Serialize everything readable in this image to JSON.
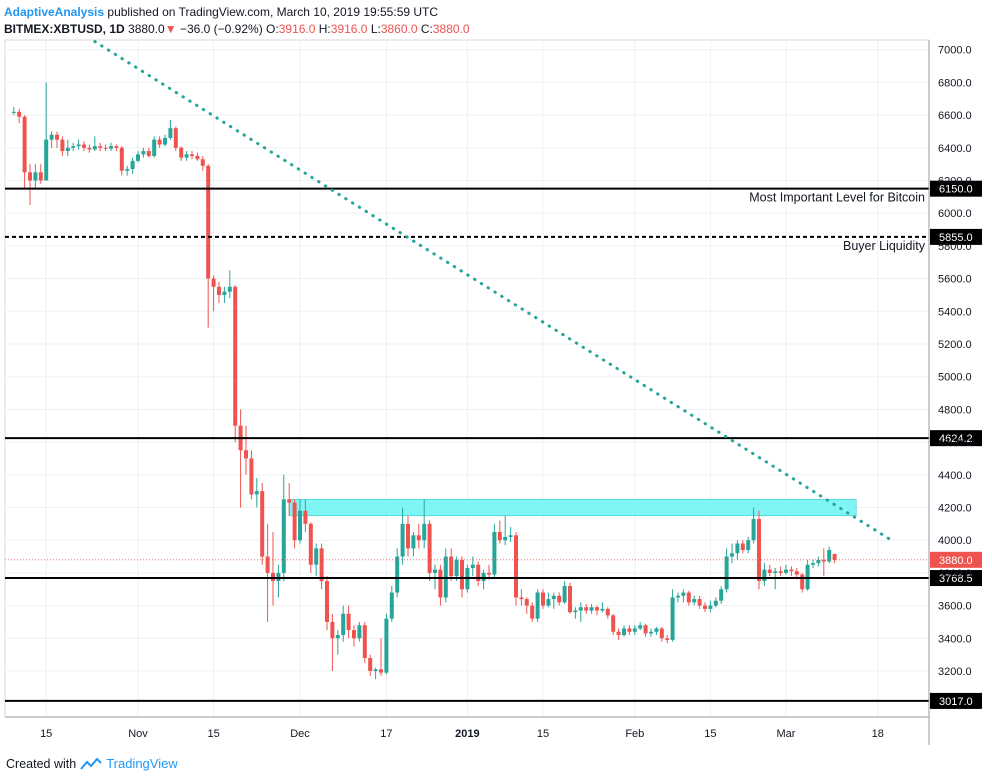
{
  "header": {
    "author": "AdaptiveAnalysis",
    "published": "published on TradingView.com, March 10, 2019 19:55:59 UTC",
    "symbol": "BITMEX:XBTUSD, 1D",
    "last": "3880.0",
    "change": "−36.0 (−0.92%)",
    "o_label": "O:",
    "o": "3916.0",
    "h_label": "H:",
    "h": "3916.0",
    "l_label": "L:",
    "l": "3860.0",
    "c_label": "C:",
    "c": "3880.0"
  },
  "footer": {
    "created_with": "Created with",
    "brand": "TradingView"
  },
  "colors": {
    "up": "#26a69a",
    "down": "#ef5350",
    "trendline": "#26a69a",
    "zone": "#80f5f5",
    "level": "#000000"
  },
  "chart_data": {
    "type": "candlestick",
    "y_ticks": [
      3200,
      3400,
      3600,
      3800,
      4000,
      4200,
      4400,
      4600,
      4800,
      5000,
      5200,
      5400,
      5600,
      5800,
      6000,
      6200,
      6400,
      6600,
      6800,
      7000
    ],
    "y_tick_labels": [
      "3200.0",
      "3400.0",
      "3600.0",
      "3800.0",
      "4000.0",
      "4200.0",
      "4400.0",
      "4600.0",
      "4800.0",
      "5000.0",
      "5200.0",
      "5400.0",
      "5600.0",
      "5800.0",
      "6000.0",
      "6200.0",
      "6400.0",
      "6600.0",
      "6800.0",
      "7000.0"
    ],
    "ylim": [
      2900,
      7070
    ],
    "x_ticks": [
      {
        "date": "2018-10-15",
        "label": "15"
      },
      {
        "date": "2018-11-01",
        "label": "Nov"
      },
      {
        "date": "2018-11-15",
        "label": "15"
      },
      {
        "date": "2018-12-01",
        "label": "Dec"
      },
      {
        "date": "2018-12-17",
        "label": "17"
      },
      {
        "date": "2019-01-01",
        "label": "2019"
      },
      {
        "date": "2019-01-15",
        "label": "15"
      },
      {
        "date": "2019-02-01",
        "label": "Feb"
      },
      {
        "date": "2019-02-15",
        "label": "15"
      },
      {
        "date": "2019-03-01",
        "label": "Mar"
      },
      {
        "date": "2019-03-18",
        "label": "18"
      }
    ],
    "levels": [
      {
        "value": 6150.0,
        "label": "6150.0",
        "style": "solid",
        "annotation": "Most Important Level for Bitcoin"
      },
      {
        "value": 5855.0,
        "label": "5855.0",
        "style": "dashed",
        "annotation": "Buyer Liquidity"
      },
      {
        "value": 4624.2,
        "label": "4624.2",
        "style": "solid",
        "annotation": ""
      },
      {
        "value": 3768.5,
        "label": "3768.5",
        "style": "solid",
        "annotation": ""
      },
      {
        "value": 3017.0,
        "label": "3017.0",
        "style": "solid",
        "annotation": ""
      }
    ],
    "last_price": {
      "value": 3880.0,
      "label": "3880.0"
    },
    "zone": {
      "start": "2018-11-29",
      "end": "2019-03-14",
      "low": 4150,
      "high": 4250
    },
    "trendline": {
      "start": {
        "date": "2018-10-24",
        "value": 7050
      },
      "end": {
        "date": "2019-03-21",
        "value": 3990
      }
    },
    "candles": [
      [
        "2018-10-09",
        6620,
        6650,
        6600,
        6620
      ],
      [
        "2018-10-10",
        6620,
        6640,
        6550,
        6590
      ],
      [
        "2018-10-11",
        6590,
        6600,
        6150,
        6250
      ],
      [
        "2018-10-12",
        6250,
        6300,
        6050,
        6200
      ],
      [
        "2018-10-13",
        6200,
        6300,
        6150,
        6250
      ],
      [
        "2018-10-14",
        6250,
        6300,
        6180,
        6200
      ],
      [
        "2018-10-15",
        6200,
        6800,
        6200,
        6450
      ],
      [
        "2018-10-16",
        6450,
        6500,
        6400,
        6480
      ],
      [
        "2018-10-17",
        6480,
        6500,
        6400,
        6450
      ],
      [
        "2018-10-18",
        6450,
        6470,
        6350,
        6380
      ],
      [
        "2018-10-19",
        6380,
        6450,
        6350,
        6400
      ],
      [
        "2018-10-20",
        6400,
        6430,
        6380,
        6410
      ],
      [
        "2018-10-21",
        6410,
        6450,
        6390,
        6420
      ],
      [
        "2018-10-22",
        6420,
        6440,
        6380,
        6400
      ],
      [
        "2018-10-23",
        6400,
        6420,
        6370,
        6390
      ],
      [
        "2018-10-24",
        6390,
        6470,
        6380,
        6410
      ],
      [
        "2018-10-25",
        6410,
        6430,
        6380,
        6400
      ],
      [
        "2018-10-26",
        6400,
        6420,
        6380,
        6395
      ],
      [
        "2018-10-27",
        6395,
        6430,
        6380,
        6410
      ],
      [
        "2018-10-28",
        6410,
        6420,
        6380,
        6400
      ],
      [
        "2018-10-29",
        6400,
        6410,
        6230,
        6260
      ],
      [
        "2018-10-30",
        6260,
        6290,
        6230,
        6270
      ],
      [
        "2018-10-31",
        6270,
        6340,
        6240,
        6320
      ],
      [
        "2018-11-01",
        6320,
        6380,
        6310,
        6360
      ],
      [
        "2018-11-02",
        6360,
        6400,
        6340,
        6380
      ],
      [
        "2018-11-03",
        6380,
        6400,
        6340,
        6350
      ],
      [
        "2018-11-04",
        6350,
        6470,
        6340,
        6450
      ],
      [
        "2018-11-05",
        6450,
        6470,
        6400,
        6420
      ],
      [
        "2018-11-06",
        6420,
        6480,
        6410,
        6460
      ],
      [
        "2018-11-07",
        6460,
        6570,
        6450,
        6520
      ],
      [
        "2018-11-08",
        6520,
        6530,
        6380,
        6400
      ],
      [
        "2018-11-09",
        6400,
        6410,
        6320,
        6340
      ],
      [
        "2018-11-10",
        6340,
        6380,
        6320,
        6360
      ],
      [
        "2018-11-11",
        6360,
        6380,
        6330,
        6350
      ],
      [
        "2018-11-12",
        6350,
        6370,
        6320,
        6330
      ],
      [
        "2018-11-13",
        6330,
        6350,
        6260,
        6290
      ],
      [
        "2018-11-14",
        6290,
        6300,
        5300,
        5600
      ],
      [
        "2018-11-15",
        5600,
        5620,
        5400,
        5550
      ],
      [
        "2018-11-16",
        5550,
        5580,
        5450,
        5500
      ],
      [
        "2018-11-17",
        5500,
        5550,
        5450,
        5520
      ],
      [
        "2018-11-18",
        5520,
        5650,
        5480,
        5550
      ],
      [
        "2018-11-19",
        5550,
        5560,
        4600,
        4700
      ],
      [
        "2018-11-20",
        4700,
        4800,
        4200,
        4550
      ],
      [
        "2018-11-21",
        4550,
        4700,
        4400,
        4500
      ],
      [
        "2018-11-22",
        4500,
        4550,
        4250,
        4280
      ],
      [
        "2018-11-23",
        4280,
        4380,
        4200,
        4300
      ],
      [
        "2018-11-24",
        4300,
        4350,
        3850,
        3900
      ],
      [
        "2018-11-25",
        3900,
        4100,
        3500,
        3800
      ],
      [
        "2018-11-26",
        3800,
        4050,
        3600,
        3750
      ],
      [
        "2018-11-27",
        3750,
        3850,
        3650,
        3800
      ],
      [
        "2018-11-28",
        3800,
        4400,
        3750,
        4250
      ],
      [
        "2018-11-29",
        4250,
        4350,
        4150,
        4230
      ],
      [
        "2018-11-30",
        4230,
        4250,
        3950,
        4000
      ],
      [
        "2018-12-01",
        4000,
        4250,
        3980,
        4180
      ],
      [
        "2018-12-02",
        4180,
        4250,
        4050,
        4100
      ],
      [
        "2018-12-03",
        4100,
        4110,
        3800,
        3850
      ],
      [
        "2018-12-04",
        3850,
        3980,
        3780,
        3950
      ],
      [
        "2018-12-05",
        3950,
        3980,
        3700,
        3750
      ],
      [
        "2018-12-06",
        3750,
        3780,
        3450,
        3500
      ],
      [
        "2018-12-07",
        3500,
        3550,
        3200,
        3400
      ],
      [
        "2018-12-08",
        3400,
        3450,
        3300,
        3420
      ],
      [
        "2018-12-09",
        3420,
        3600,
        3380,
        3550
      ],
      [
        "2018-12-10",
        3550,
        3600,
        3400,
        3450
      ],
      [
        "2018-12-11",
        3450,
        3480,
        3350,
        3400
      ],
      [
        "2018-12-12",
        3400,
        3500,
        3380,
        3480
      ],
      [
        "2018-12-13",
        3480,
        3500,
        3250,
        3280
      ],
      [
        "2018-12-14",
        3280,
        3300,
        3170,
        3200
      ],
      [
        "2018-12-15",
        3200,
        3220,
        3150,
        3210
      ],
      [
        "2018-12-16",
        3210,
        3400,
        3170,
        3190
      ],
      [
        "2018-12-17",
        3190,
        3550,
        3180,
        3520
      ],
      [
        "2018-12-18",
        3520,
        3720,
        3500,
        3680
      ],
      [
        "2018-12-19",
        3680,
        3950,
        3650,
        3900
      ],
      [
        "2018-12-20",
        3900,
        4200,
        3850,
        4100
      ],
      [
        "2018-12-21",
        4100,
        4150,
        3900,
        3950
      ],
      [
        "2018-12-22",
        3950,
        4050,
        3900,
        4030
      ],
      [
        "2018-12-23",
        4030,
        4100,
        3950,
        4000
      ],
      [
        "2018-12-24",
        4000,
        4250,
        3950,
        4100
      ],
      [
        "2018-12-25",
        4100,
        4120,
        3750,
        3800
      ],
      [
        "2018-12-26",
        3800,
        3850,
        3700,
        3820
      ],
      [
        "2018-12-27",
        3820,
        3850,
        3600,
        3650
      ],
      [
        "2018-12-28",
        3650,
        3950,
        3620,
        3900
      ],
      [
        "2018-12-29",
        3900,
        3950,
        3750,
        3780
      ],
      [
        "2018-12-30",
        3780,
        3900,
        3750,
        3880
      ],
      [
        "2018-12-31",
        3880,
        3900,
        3650,
        3700
      ],
      [
        "2019-01-01",
        3700,
        3850,
        3680,
        3830
      ],
      [
        "2019-01-02",
        3830,
        3900,
        3780,
        3850
      ],
      [
        "2019-01-03",
        3850,
        3870,
        3720,
        3750
      ],
      [
        "2019-01-04",
        3750,
        3820,
        3700,
        3800
      ],
      [
        "2019-01-05",
        3800,
        3850,
        3760,
        3790
      ],
      [
        "2019-01-06",
        3790,
        4100,
        3770,
        4050
      ],
      [
        "2019-01-07",
        4050,
        4120,
        3980,
        4000
      ],
      [
        "2019-01-08",
        4000,
        4150,
        3970,
        4020
      ],
      [
        "2019-01-09",
        4020,
        4080,
        3990,
        4030
      ],
      [
        "2019-01-10",
        4030,
        4050,
        3600,
        3650
      ],
      [
        "2019-01-11",
        3650,
        3700,
        3600,
        3640
      ],
      [
        "2019-01-12",
        3640,
        3650,
        3550,
        3600
      ],
      [
        "2019-01-13",
        3600,
        3620,
        3500,
        3520
      ],
      [
        "2019-01-14",
        3520,
        3700,
        3500,
        3680
      ],
      [
        "2019-01-15",
        3680,
        3700,
        3580,
        3600
      ],
      [
        "2019-01-16",
        3600,
        3680,
        3590,
        3640
      ],
      [
        "2019-01-17",
        3640,
        3680,
        3580,
        3660
      ],
      [
        "2019-01-18",
        3660,
        3680,
        3600,
        3620
      ],
      [
        "2019-01-19",
        3620,
        3750,
        3610,
        3720
      ],
      [
        "2019-01-20",
        3720,
        3740,
        3550,
        3560
      ],
      [
        "2019-01-21",
        3560,
        3590,
        3520,
        3570
      ],
      [
        "2019-01-22",
        3570,
        3620,
        3500,
        3590
      ],
      [
        "2019-01-23",
        3590,
        3610,
        3550,
        3570
      ],
      [
        "2019-01-24",
        3570,
        3610,
        3550,
        3590
      ],
      [
        "2019-01-25",
        3590,
        3600,
        3540,
        3570
      ],
      [
        "2019-01-26",
        3570,
        3620,
        3560,
        3580
      ],
      [
        "2019-01-27",
        3580,
        3590,
        3520,
        3540
      ],
      [
        "2019-01-28",
        3540,
        3550,
        3420,
        3440
      ],
      [
        "2019-01-29",
        3440,
        3460,
        3390,
        3420
      ],
      [
        "2019-01-30",
        3420,
        3480,
        3410,
        3460
      ],
      [
        "2019-01-31",
        3460,
        3480,
        3420,
        3440
      ],
      [
        "2019-02-01",
        3440,
        3480,
        3420,
        3460
      ],
      [
        "2019-02-02",
        3460,
        3500,
        3450,
        3480
      ],
      [
        "2019-02-03",
        3480,
        3490,
        3410,
        3430
      ],
      [
        "2019-02-04",
        3430,
        3460,
        3410,
        3440
      ],
      [
        "2019-02-05",
        3440,
        3470,
        3420,
        3460
      ],
      [
        "2019-02-06",
        3460,
        3470,
        3380,
        3400
      ],
      [
        "2019-02-07",
        3400,
        3420,
        3370,
        3390
      ],
      [
        "2019-02-08",
        3390,
        3700,
        3380,
        3650
      ],
      [
        "2019-02-09",
        3650,
        3680,
        3620,
        3660
      ],
      [
        "2019-02-10",
        3660,
        3700,
        3620,
        3680
      ],
      [
        "2019-02-11",
        3680,
        3690,
        3600,
        3620
      ],
      [
        "2019-02-12",
        3620,
        3660,
        3600,
        3640
      ],
      [
        "2019-02-13",
        3640,
        3660,
        3580,
        3600
      ],
      [
        "2019-02-14",
        3600,
        3620,
        3560,
        3580
      ],
      [
        "2019-02-15",
        3580,
        3630,
        3560,
        3600
      ],
      [
        "2019-02-16",
        3600,
        3650,
        3590,
        3630
      ],
      [
        "2019-02-17",
        3630,
        3720,
        3610,
        3700
      ],
      [
        "2019-02-18",
        3700,
        3950,
        3680,
        3900
      ],
      [
        "2019-02-19",
        3900,
        3980,
        3860,
        3920
      ],
      [
        "2019-02-20",
        3920,
        4000,
        3880,
        3980
      ],
      [
        "2019-02-21",
        3980,
        4000,
        3920,
        3940
      ],
      [
        "2019-02-22",
        3940,
        4020,
        3920,
        4000
      ],
      [
        "2019-02-23",
        4000,
        4200,
        3980,
        4130
      ],
      [
        "2019-02-24",
        4130,
        4180,
        3700,
        3750
      ],
      [
        "2019-02-25",
        3750,
        3860,
        3720,
        3820
      ],
      [
        "2019-02-26",
        3820,
        3850,
        3780,
        3800
      ],
      [
        "2019-02-27",
        3800,
        3830,
        3700,
        3810
      ],
      [
        "2019-02-28",
        3810,
        3840,
        3780,
        3800
      ],
      [
        "2019-03-01",
        3800,
        3850,
        3790,
        3820
      ],
      [
        "2019-03-02",
        3820,
        3840,
        3780,
        3810
      ],
      [
        "2019-03-03",
        3810,
        3830,
        3760,
        3790
      ],
      [
        "2019-03-04",
        3790,
        3800,
        3680,
        3700
      ],
      [
        "2019-03-05",
        3700,
        3880,
        3690,
        3850
      ],
      [
        "2019-03-06",
        3850,
        3880,
        3830,
        3860
      ],
      [
        "2019-03-07",
        3860,
        3900,
        3840,
        3880
      ],
      [
        "2019-03-08",
        3880,
        3950,
        3780,
        3870
      ],
      [
        "2019-03-09",
        3870,
        3960,
        3860,
        3940
      ],
      [
        "2019-03-10",
        3916,
        3916,
        3860,
        3880
      ]
    ]
  }
}
